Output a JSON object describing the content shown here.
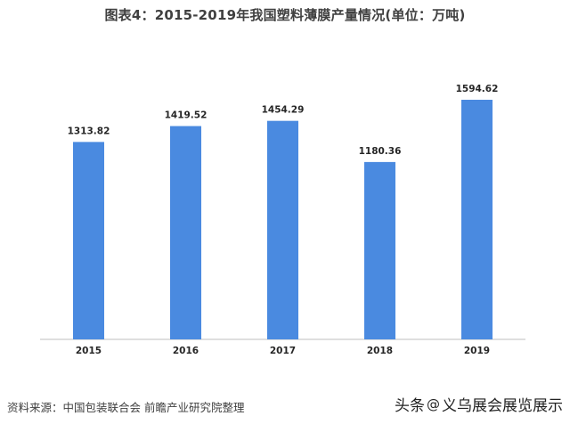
{
  "title": "图表4：2015-2019年我国塑料薄膜产量情况(单位：万吨)",
  "source": "资料来源：中国包装联合会 前瞻产业研究院整理",
  "overlay": {
    "prefix": "头条",
    "at": "@",
    "name": "义乌展会展览展示"
  },
  "colors": {
    "bar": "#4a8ae0",
    "axis": "#bfbfbf",
    "label": "#262626"
  },
  "chart_data": {
    "type": "bar",
    "title": "图表4：2015-2019年我国塑料薄膜产量情况(单位：万吨)",
    "categories": [
      "2015",
      "2016",
      "2017",
      "2018",
      "2019"
    ],
    "values": [
      1313.82,
      1419.52,
      1454.29,
      1180.36,
      1594.62
    ],
    "value_labels": [
      "1313.82",
      "1419.52",
      "1454.29",
      "1180.36",
      "1594.62"
    ],
    "ylim": [
      0,
      1800
    ],
    "grid": false,
    "legend": "none",
    "xlabel": "",
    "ylabel": ""
  }
}
